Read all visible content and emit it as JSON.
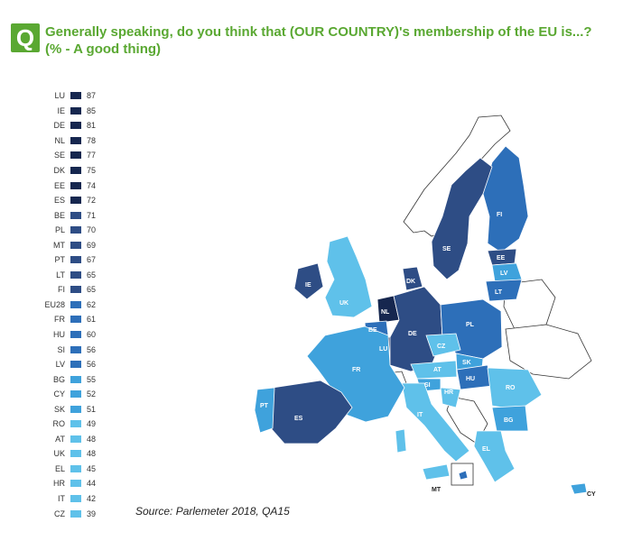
{
  "header": {
    "badge": "Q",
    "title_line1": "Generally speaking, do you think that (OUR COUNTRY)'s membership of the EU is...?",
    "title_line2": "(% -  A  good thing)"
  },
  "source": "Source: Parlemeter 2018, QA15",
  "colors": {
    "accent": "#5aa832",
    "darkest": "#16274f",
    "dark": "#2e4d85",
    "mid": "#2d6fb9",
    "light": "#3fa2dc",
    "lightest": "#5fc1ea",
    "non_eu": "#ffffff"
  },
  "legend": [
    {
      "code": "LU",
      "value": "87"
    },
    {
      "code": "IE",
      "value": "85"
    },
    {
      "code": "DE",
      "value": "81"
    },
    {
      "code": "NL",
      "value": "78"
    },
    {
      "code": "SE",
      "value": "77"
    },
    {
      "code": "DK",
      "value": "75"
    },
    {
      "code": "EE",
      "value": "74"
    },
    {
      "code": "ES",
      "value": "72"
    },
    {
      "code": "BE",
      "value": "71"
    },
    {
      "code": "PL",
      "value": "70"
    },
    {
      "code": "MT",
      "value": "69"
    },
    {
      "code": "PT",
      "value": "67"
    },
    {
      "code": "LT",
      "value": "65"
    },
    {
      "code": "FI",
      "value": "65"
    },
    {
      "code": "EU28",
      "value": "62"
    },
    {
      "code": "FR",
      "value": "61"
    },
    {
      "code": "HU",
      "value": "60"
    },
    {
      "code": "SI",
      "value": "56"
    },
    {
      "code": "LV",
      "value": "56"
    },
    {
      "code": "BG",
      "value": "55"
    },
    {
      "code": "CY",
      "value": "52"
    },
    {
      "code": "SK",
      "value": "51"
    },
    {
      "code": "RO",
      "value": "49"
    },
    {
      "code": "AT",
      "value": "48"
    },
    {
      "code": "UK",
      "value": "48"
    },
    {
      "code": "EL",
      "value": "45"
    },
    {
      "code": "HR",
      "value": "44"
    },
    {
      "code": "IT",
      "value": "42"
    },
    {
      "code": "CZ",
      "value": "39"
    }
  ]
}
